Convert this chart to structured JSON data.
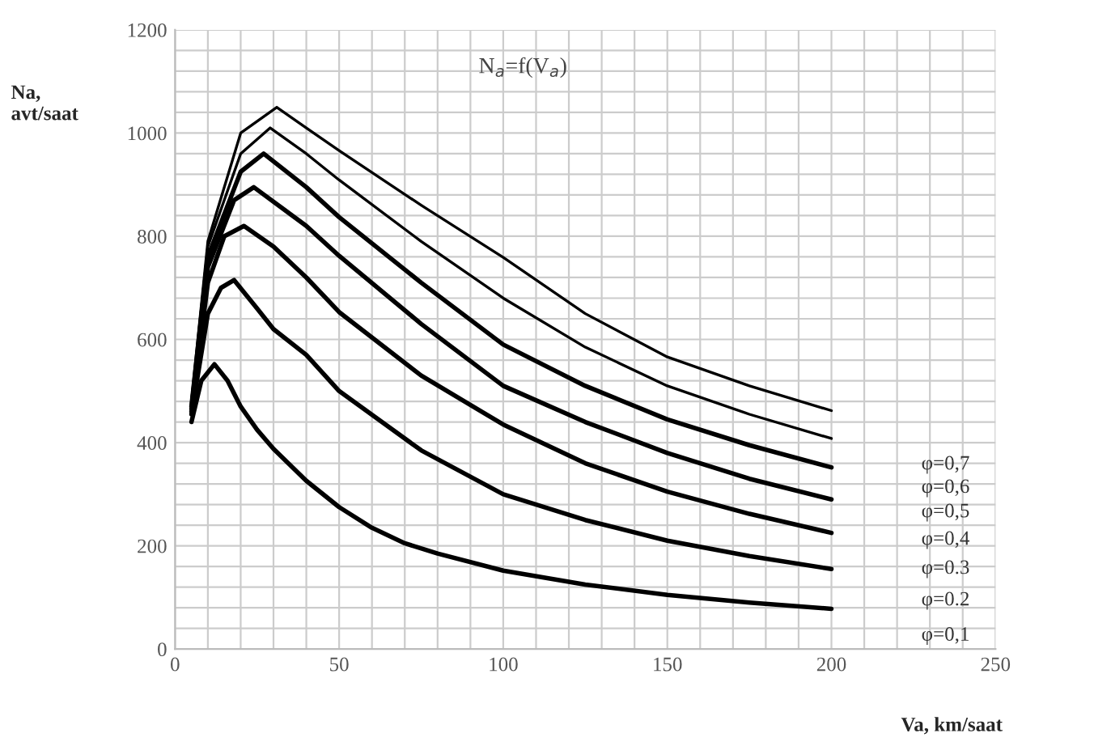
{
  "chart_data": {
    "type": "line",
    "title": "N$_{a}$=f(V$_{a}$)",
    "xlabel": "Va, km/saat",
    "ylabel": "Na,\navt/saat",
    "xlim": [
      0,
      250
    ],
    "ylim": [
      0,
      1200
    ],
    "xticks": [
      0,
      {
        "value": 10,
        "label": null
      },
      {
        "value": 20,
        "label": null
      },
      {
        "value": 30,
        "label": null
      },
      {
        "value": 40,
        "label": null
      },
      50,
      {
        "value": 60,
        "label": null
      },
      {
        "value": 70,
        "label": null
      },
      {
        "value": 80,
        "label": null
      },
      {
        "value": 90,
        "label": null
      },
      100,
      {
        "value": 110,
        "label": null
      },
      {
        "value": 120,
        "label": null
      },
      {
        "value": 130,
        "label": null
      },
      {
        "value": 140,
        "label": null
      },
      150,
      {
        "value": 160,
        "label": null
      },
      {
        "value": 170,
        "label": null
      },
      {
        "value": 180,
        "label": null
      },
      {
        "value": 190,
        "label": null
      },
      200,
      {
        "value": 210,
        "label": null
      },
      {
        "value": 220,
        "label": null
      },
      {
        "value": 230,
        "label": null
      },
      {
        "value": 240,
        "label": null
      },
      250
    ],
    "yticks": [
      0,
      {
        "value": 40,
        "label": null
      },
      {
        "value": 80,
        "label": null
      },
      {
        "value": 120,
        "label": null
      },
      {
        "value": 160,
        "label": null
      },
      200,
      {
        "value": 240,
        "label": null
      },
      {
        "value": 280,
        "label": null
      },
      {
        "value": 320,
        "label": null
      },
      {
        "value": 360,
        "label": null
      },
      400,
      {
        "value": 440,
        "label": null
      },
      {
        "value": 480,
        "label": null
      },
      {
        "value": 520,
        "label": null
      },
      {
        "value": 560,
        "label": null
      },
      600,
      {
        "value": 640,
        "label": null
      },
      {
        "value": 680,
        "label": null
      },
      {
        "value": 720,
        "label": null
      },
      {
        "value": 760,
        "label": null
      },
      800,
      {
        "value": 840,
        "label": null
      },
      {
        "value": 880,
        "label": null
      },
      {
        "value": 920,
        "label": null
      },
      {
        "value": 960,
        "label": null
      },
      1000,
      {
        "value": 1040,
        "label": null
      },
      {
        "value": 1080,
        "label": null
      },
      {
        "value": 1120,
        "label": null
      },
      {
        "value": 1160,
        "label": null
      },
      1200
    ],
    "grid": true,
    "legend": false,
    "marker": "none",
    "line_style": "solid",
    "series": [
      {
        "name": "φ=0,7",
        "color": "#000000",
        "x": [
          5,
          10,
          20,
          31,
          40,
          50,
          75,
          100,
          125,
          150,
          175,
          200
        ],
        "values": [
          480,
          790,
          1000,
          1050,
          1010,
          966,
          860,
          759,
          650,
          566,
          510,
          462
        ]
      },
      {
        "name": "φ=0,6",
        "color": "#000000",
        "x": [
          5,
          10,
          20,
          29,
          40,
          50,
          75,
          100,
          125,
          150,
          175,
          200
        ],
        "values": [
          475,
          780,
          960,
          1010,
          960,
          909,
          790,
          680,
          585,
          510,
          455,
          408
        ]
      },
      {
        "name": "φ=0,5",
        "color": "#000000",
        "x": [
          5,
          10,
          20,
          27,
          40,
          50,
          75,
          100,
          125,
          150,
          175,
          200
        ],
        "values": [
          470,
          760,
          925,
          960,
          895,
          837,
          710,
          590,
          510,
          445,
          395,
          352
        ]
      },
      {
        "name": "φ=0,4",
        "color": "#000000",
        "x": [
          5,
          10,
          18,
          24,
          40,
          50,
          75,
          100,
          125,
          150,
          175,
          200
        ],
        "values": [
          465,
          740,
          870,
          895,
          820,
          762,
          630,
          510,
          440,
          380,
          330,
          290
        ]
      },
      {
        "name": "φ=0.3",
        "color": "#000000",
        "x": [
          5,
          10,
          15,
          21,
          30,
          40,
          50,
          75,
          100,
          125,
          150,
          175,
          200
        ],
        "values": [
          460,
          710,
          800,
          820,
          780,
          720,
          653,
          530,
          435,
          360,
          305,
          262,
          225
        ]
      },
      {
        "name": "φ=0.2",
        "color": "#000000",
        "x": [
          5,
          10,
          14,
          18,
          25,
          30,
          40,
          50,
          75,
          100,
          125,
          150,
          175,
          200
        ],
        "values": [
          455,
          650,
          700,
          715,
          660,
          620,
          570,
          500,
          385,
          300,
          250,
          210,
          180,
          155
        ]
      },
      {
        "name": "φ=0,1",
        "color": "#000000",
        "x": [
          5,
          8,
          12,
          16,
          20,
          25,
          30,
          40,
          50,
          60,
          70,
          80,
          100,
          125,
          150,
          175,
          200
        ],
        "values": [
          440,
          520,
          552,
          520,
          470,
          425,
          388,
          326,
          275,
          235,
          205,
          185,
          152,
          125,
          105,
          90,
          78
        ]
      }
    ]
  }
}
